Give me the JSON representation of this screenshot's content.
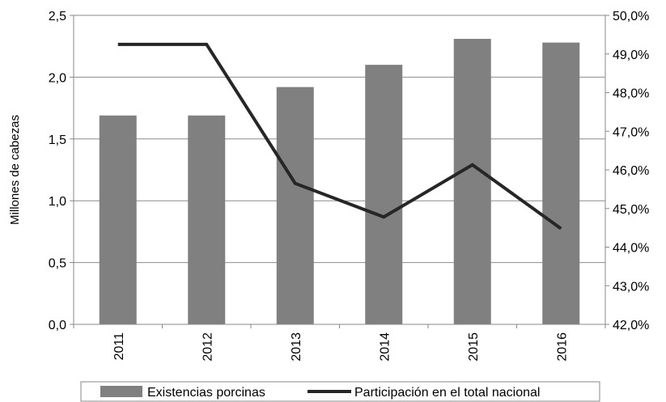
{
  "chart_data": {
    "type": "bar",
    "categories": [
      "2011",
      "2012",
      "2013",
      "2014",
      "2015",
      "2016"
    ],
    "ylabel": "Millones de cabezas",
    "ylim": [
      0,
      2.5
    ],
    "y2lim": [
      42,
      50
    ],
    "y_ticks": [
      "0,0",
      "0,5",
      "1,0",
      "1,5",
      "2,0",
      "2,5"
    ],
    "y2_ticks": [
      "42,0%",
      "43,0%",
      "44,0%",
      "45,0%",
      "46,0%",
      "47,0%",
      "48,0%",
      "49,0%",
      "50,0%"
    ],
    "series": [
      {
        "name": "Existencias porcinas",
        "type": "bar",
        "axis": "left",
        "color": "#808080",
        "values": [
          1.69,
          1.69,
          1.92,
          2.1,
          2.31,
          2.28
        ]
      },
      {
        "name": "Participación en el total nacional",
        "type": "line",
        "axis": "right",
        "color": "#262626",
        "values": [
          49.25,
          49.25,
          45.65,
          44.78,
          46.13,
          44.48
        ]
      }
    ],
    "grid": true,
    "legend": "bottom"
  }
}
